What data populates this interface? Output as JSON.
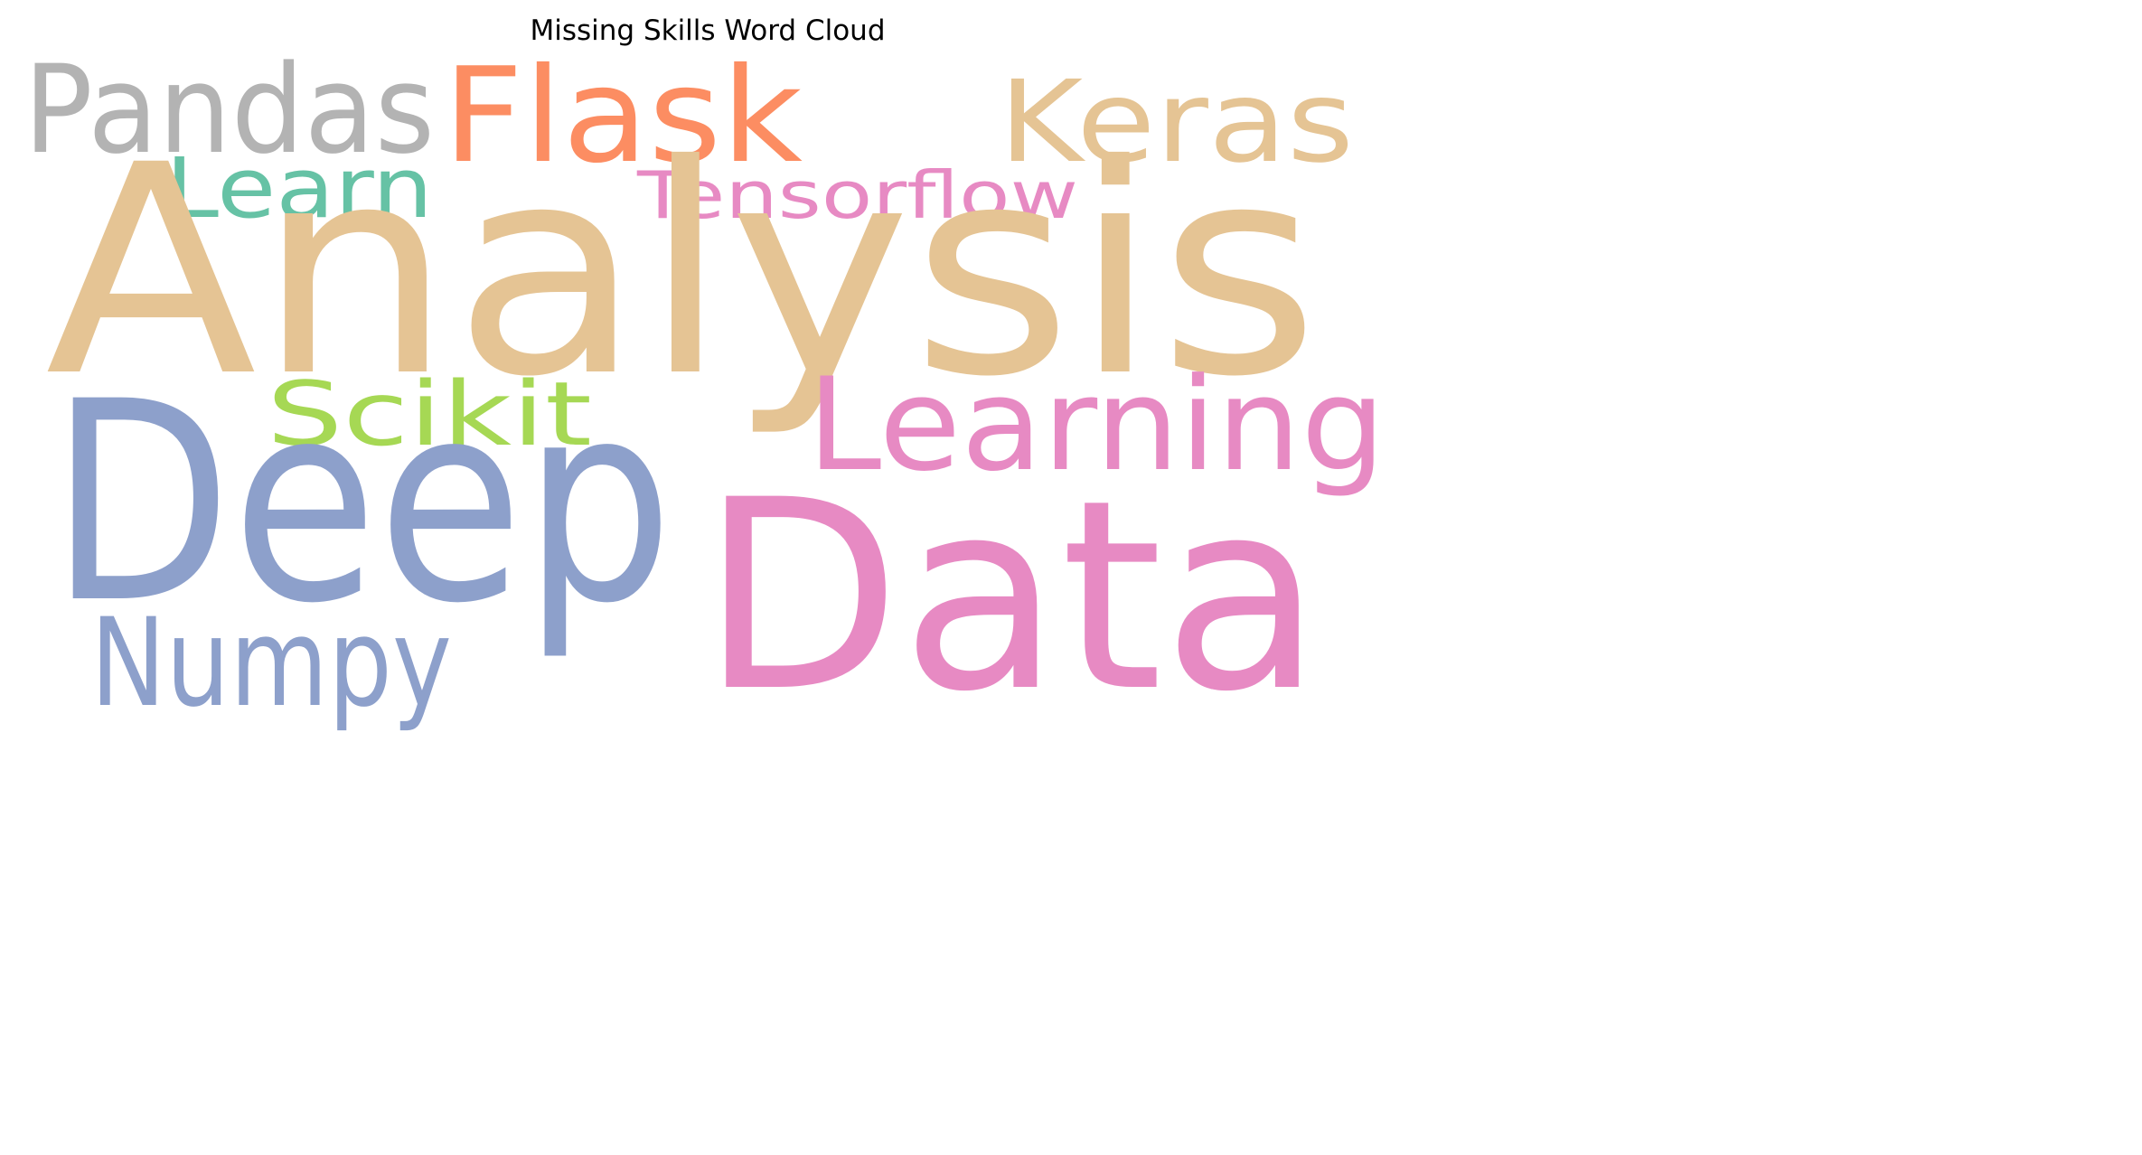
{
  "title": "Missing Skills Word Cloud",
  "words": [
    {
      "text": "Analysis",
      "color": "#E5C494"
    },
    {
      "text": "Deep",
      "color": "#8DA0CB"
    },
    {
      "text": "Data",
      "color": "#E78AC3"
    },
    {
      "text": "Learning",
      "color": "#E78AC3"
    },
    {
      "text": "Flask",
      "color": "#FC8D62"
    },
    {
      "text": "Pandas",
      "color": "#B3B3B3"
    },
    {
      "text": "Keras",
      "color": "#E5C494"
    },
    {
      "text": "Tensorflow",
      "color": "#E78AC3"
    },
    {
      "text": "Learn",
      "color": "#66C2A5"
    },
    {
      "text": "Scikit",
      "color": "#A6D854"
    },
    {
      "text": "Numpy",
      "color": "#8DA0CB"
    }
  ]
}
